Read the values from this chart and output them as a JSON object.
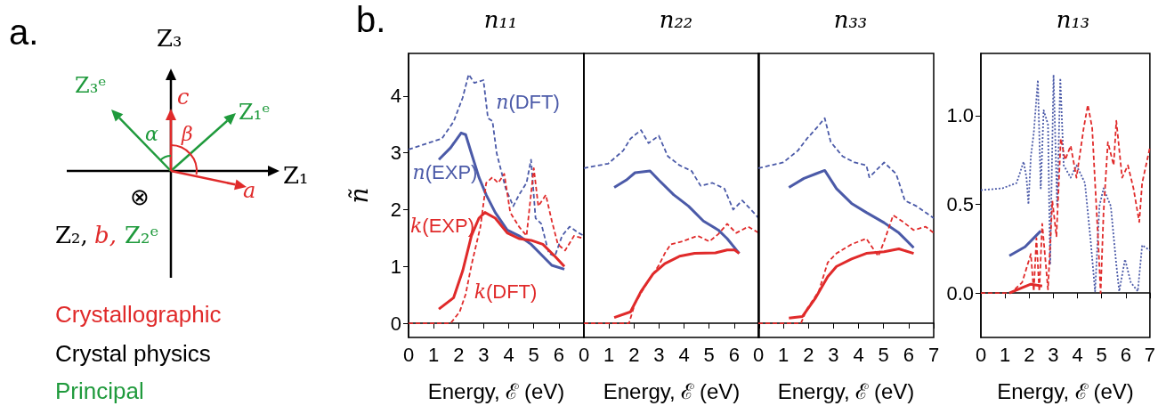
{
  "chart_data": [
    {
      "type": "other",
      "annotations": [
        "a.",
        "Z₃",
        "Z₁",
        "Z₃ᵉ",
        "Z₁ᵉ",
        "c",
        "α",
        "β",
        "a",
        "⊗",
        "Z₂,",
        "b,",
        "Z₂ᵉ",
        "Crystallographic",
        "Crystal physics",
        "Principal"
      ]
    },
    {
      "type": "line",
      "title": "n₁₁",
      "xlabel": "Energy, ℰ (eV)",
      "ylabel": "ñ",
      "xlim": [
        0,
        7
      ],
      "xticks": [
        0,
        1,
        2,
        3,
        4,
        5,
        6,
        {
          "value": 7,
          "label": null
        }
      ],
      "ylim": [
        -0.25,
        4.75
      ],
      "yticks": [
        0,
        1,
        2,
        3,
        4
      ],
      "marker": "none",
      "annotations": [
        "b."
      ],
      "series": [
        {
          "name": "n(DFT)",
          "color": "#4b5aa8",
          "line_style": "dashed",
          "x": [
            0,
            1.33,
            1.8,
            2.16,
            2.4,
            2.63,
            2.99,
            3.17,
            3.35,
            3.52,
            3.7,
            3.88,
            4.18,
            4.41,
            4.71,
            4.89,
            5.07,
            5.3,
            5.6,
            5.84,
            6.13,
            6.43,
            6.79,
            7.0
          ],
          "values": [
            3.06,
            3.25,
            3.55,
            3.97,
            4.38,
            4.23,
            4.28,
            3.61,
            3.56,
            2.99,
            2.68,
            2.37,
            2.06,
            2.26,
            2.47,
            2.88,
            1.85,
            1.75,
            1.23,
            1.18,
            1.54,
            1.7,
            1.59,
            1.54
          ]
        },
        {
          "name": "n(EXP)",
          "color": "#4b5aa8",
          "line_style": "solid",
          "x": [
            1.21,
            1.68,
            2.1,
            2.28,
            2.51,
            2.81,
            3.1,
            3.46,
            3.94,
            4.41,
            4.89,
            5.36,
            5.72,
            6.22
          ],
          "values": [
            2.88,
            3.09,
            3.35,
            3.32,
            2.99,
            2.57,
            2.26,
            1.95,
            1.64,
            1.54,
            1.39,
            1.18,
            1.02,
            0.95
          ]
        },
        {
          "name": "k(EXP)",
          "color": "#e02a2a",
          "line_style": "solid",
          "x": [
            1.21,
            1.8,
            2.16,
            2.51,
            2.81,
            3.05,
            3.46,
            3.94,
            4.41,
            4.89,
            5.36,
            5.84,
            6.22
          ],
          "values": [
            0.25,
            0.45,
            0.92,
            1.54,
            1.85,
            1.95,
            1.85,
            1.59,
            1.49,
            1.46,
            1.39,
            1.18,
            1.0
          ]
        },
        {
          "name": "k(DFT)",
          "color": "#e02a2a",
          "line_style": "dashed",
          "x": [
            0,
            1.68,
            2.04,
            2.28,
            2.51,
            2.87,
            3.1,
            3.35,
            3.58,
            3.82,
            4.06,
            4.41,
            4.71,
            5.0,
            5.18,
            5.48,
            5.72,
            5.96,
            6.25,
            6.61,
            7.0
          ],
          "values": [
            0,
            0,
            0.2,
            0.51,
            1.02,
            1.7,
            2.47,
            2.57,
            2.47,
            2.63,
            1.95,
            1.7,
            1.54,
            2.73,
            2.06,
            2.26,
            1.8,
            1.39,
            1.28,
            1.54,
            1.49
          ]
        }
      ]
    },
    {
      "type": "line",
      "title": "n₂₂",
      "xlabel": "Energy, ℰ (eV)",
      "xlim": [
        0,
        7
      ],
      "xticks": [
        0,
        1,
        2,
        3,
        4,
        5,
        6,
        {
          "value": 7,
          "label": null
        }
      ],
      "ylim": [
        -0.25,
        4.75
      ],
      "yticks": [
        0,
        1,
        2,
        3,
        4
      ],
      "tick_labels": "x",
      "marker": "none",
      "series": [
        {
          "color": "#4b5aa8",
          "line_style": "dashed",
          "x": [
            0,
            0.97,
            1.57,
            1.86,
            2.28,
            2.58,
            2.99,
            3.35,
            3.82,
            4.3,
            4.66,
            5.13,
            5.61,
            5.96,
            6.32,
            6.67,
            6.98
          ],
          "values": [
            2.73,
            2.81,
            3.04,
            3.25,
            3.4,
            3.17,
            3.3,
            2.94,
            2.78,
            2.68,
            2.42,
            2.47,
            2.37,
            2.0,
            2.16,
            2.0,
            1.85
          ]
        },
        {
          "color": "#4b5aa8",
          "line_style": "solid",
          "x": [
            1.21,
            1.69,
            2.04,
            2.64,
            2.99,
            3.59,
            4.18,
            4.77,
            5.37,
            5.72,
            6.2
          ],
          "values": [
            2.39,
            2.52,
            2.65,
            2.68,
            2.52,
            2.26,
            2.06,
            1.8,
            1.64,
            1.49,
            1.23
          ]
        },
        {
          "color": "#e02a2a",
          "line_style": "solid",
          "x": [
            1.21,
            1.86,
            2.28,
            2.76,
            3.23,
            3.82,
            4.42,
            5.25,
            5.72,
            6.02,
            6.2
          ],
          "values": [
            0.1,
            0.2,
            0.56,
            0.87,
            1.05,
            1.18,
            1.23,
            1.24,
            1.29,
            1.29,
            1.23
          ]
        },
        {
          "color": "#e02a2a",
          "line_style": "dashed",
          "x": [
            0,
            1.8,
            2.04,
            2.52,
            2.99,
            3.23,
            3.47,
            3.94,
            4.54,
            5.01,
            5.37,
            5.72,
            6.08,
            6.56,
            6.98
          ],
          "values": [
            0,
            0,
            0.35,
            0.71,
            1.02,
            1.23,
            1.39,
            1.44,
            1.54,
            1.44,
            1.57,
            1.75,
            1.59,
            1.7,
            1.59
          ]
        }
      ]
    },
    {
      "type": "line",
      "title": "n₃₃",
      "xlabel": "Energy, ℰ (eV)",
      "xlim": [
        0,
        7
      ],
      "xticks": [
        0,
        1,
        2,
        3,
        4,
        5,
        6,
        7
      ],
      "ylim": [
        -0.25,
        4.75
      ],
      "yticks": [
        0,
        1,
        2,
        3,
        4
      ],
      "tick_labels": "x",
      "marker": "none",
      "series": [
        {
          "color": "#4b5aa8",
          "line_style": "dashed",
          "x": [
            0,
            0.99,
            1.58,
            1.94,
            2.35,
            2.65,
            2.89,
            3.36,
            3.84,
            4.31,
            4.43,
            5.02,
            5.5,
            5.85,
            6.32,
            7.0
          ],
          "values": [
            2.73,
            2.83,
            3.04,
            3.25,
            3.45,
            3.61,
            3.19,
            2.94,
            2.83,
            2.78,
            2.57,
            2.83,
            2.63,
            2.16,
            2.06,
            1.85
          ]
        },
        {
          "color": "#4b5aa8",
          "line_style": "solid",
          "x": [
            1.22,
            1.82,
            2.29,
            2.65,
            3.12,
            3.72,
            4.31,
            5.02,
            5.61,
            6.2
          ],
          "values": [
            2.39,
            2.55,
            2.63,
            2.69,
            2.37,
            2.11,
            1.95,
            1.77,
            1.59,
            1.33
          ]
        },
        {
          "color": "#e02a2a",
          "line_style": "solid",
          "x": [
            1.22,
            1.76,
            2.29,
            2.77,
            3.12,
            3.72,
            4.31,
            5.02,
            5.61,
            6.2
          ],
          "values": [
            0.09,
            0.12,
            0.45,
            0.82,
            1.0,
            1.13,
            1.23,
            1.26,
            1.31,
            1.23
          ]
        },
        {
          "color": "#e02a2a",
          "line_style": "dashed",
          "x": [
            0,
            1.7,
            1.94,
            2.41,
            2.77,
            3.12,
            3.72,
            4.31,
            4.79,
            5.02,
            5.38,
            5.73,
            6.2,
            6.68,
            7.0
          ],
          "values": [
            0,
            0,
            0.25,
            0.56,
            1.07,
            1.23,
            1.39,
            1.49,
            1.18,
            1.44,
            1.9,
            1.8,
            1.64,
            1.7,
            1.59
          ]
        }
      ]
    },
    {
      "type": "line",
      "title": "n₁₃",
      "xlabel": "Energy, ℰ (eV)",
      "xlim": [
        0,
        7
      ],
      "xticks": [
        0,
        1,
        2,
        3,
        4,
        5,
        6,
        7
      ],
      "ylim": [
        -0.25,
        1.35
      ],
      "yticks": [
        {
          "value": 0,
          "label": "0.0"
        },
        {
          "value": 0.5,
          "label": "0.5"
        },
        {
          "value": 1,
          "label": "1.0"
        }
      ],
      "marker": "none",
      "series": [
        {
          "color": "#4b5aa8",
          "line_style": "dotted",
          "x": [
            0,
            0.89,
            1.48,
            1.77,
            1.89,
            1.97,
            2.07,
            2.19,
            2.36,
            2.48,
            2.6,
            2.78,
            2.87,
            3.01,
            3.16,
            3.29,
            3.43,
            3.72,
            3.96,
            4.31,
            4.55,
            4.73,
            4.91,
            5.08,
            5.38,
            5.61,
            5.73,
            5.97,
            6.21,
            6.5,
            6.68,
            7.0
          ],
          "values": [
            0.58,
            0.59,
            0.62,
            0.74,
            0.65,
            0.5,
            0.77,
            0.9,
            1.2,
            0.59,
            1.03,
            0.95,
            0.16,
            1.23,
            0.49,
            1.21,
            0.72,
            0.65,
            0.72,
            0.62,
            0.29,
            0.01,
            0.49,
            0.59,
            0.49,
            0.16,
            0.01,
            0.19,
            0.06,
            0.01,
            0.27,
            0.24
          ]
        },
        {
          "color": "#4b5aa8",
          "line_style": "solid",
          "x": [
            1.18,
            1.83,
            2.19,
            2.48
          ],
          "values": [
            0.21,
            0.26,
            0.31,
            0.35
          ]
        },
        {
          "color": "#e02a2a",
          "line_style": "dashed",
          "x": [
            0,
            1.24,
            1.71,
            2.07,
            2.19,
            2.3,
            2.42,
            2.54,
            2.78,
            2.96,
            3.13,
            3.31,
            3.49,
            3.72,
            3.96,
            4.26,
            4.43,
            4.61,
            4.73,
            4.85,
            4.96,
            5.08,
            5.26,
            5.5,
            5.61,
            5.85,
            6.09,
            6.32,
            6.56,
            6.68,
            7.0
          ],
          "values": [
            0,
            0,
            0.06,
            0.22,
            0.01,
            0.31,
            0.01,
            0.39,
            0.02,
            0.52,
            0.32,
            0.87,
            0.75,
            0.83,
            0.65,
            0.93,
            1.06,
            0.93,
            0.62,
            0.32,
            0.0,
            0.45,
            0.85,
            0.72,
            0.97,
            0.65,
            0.72,
            0.59,
            0.4,
            0.62,
            0.82
          ]
        },
        {
          "color": "#e02a2a",
          "line_style": "solid",
          "x": [
            1.18,
            1.71,
            2.07,
            2.54
          ],
          "values": [
            0,
            0.03,
            0.05,
            0.04
          ]
        }
      ]
    }
  ]
}
